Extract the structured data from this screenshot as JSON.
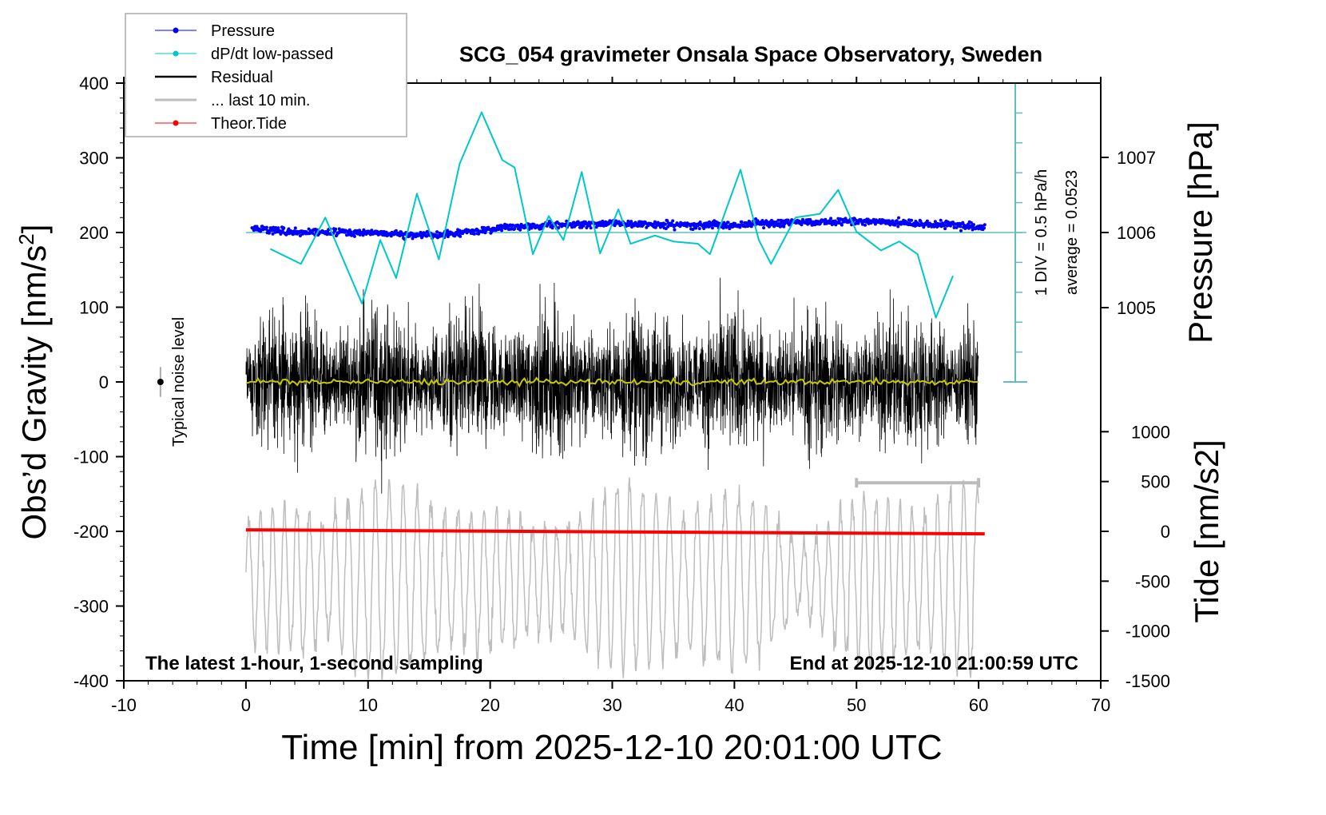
{
  "chart_data": {
    "type": "line",
    "title": "SCG_054 gravimeter Onsala Space Observatory, Sweden",
    "xlabel": "Time [min] from 2025-12-10 20:01:00 UTC",
    "ylabel": "Obs'd Gravity [nm/s2]",
    "ylabel_right_top": "Pressure [hPa]",
    "ylabel_right_bottom": "Tide [nm/s2]",
    "xlim": [
      -10,
      70
    ],
    "ylim": [
      -400,
      400
    ],
    "xticks": [
      "-10",
      "0",
      "10",
      "20",
      "30",
      "40",
      "50",
      "60",
      "70"
    ],
    "yticks": [
      "400",
      "300",
      "200",
      "100",
      "0",
      "-100",
      "-200",
      "-300",
      "-400"
    ],
    "pressure_ticks": [
      "1007",
      "1006",
      "1005"
    ],
    "pressure_tick_values": [
      1007,
      1006,
      1005
    ],
    "tide_ticks": [
      "1000",
      "500",
      "0",
      "-500",
      "-1000",
      "-1500"
    ],
    "tide_tick_values": [
      1000,
      500,
      0,
      -500,
      -1000,
      -1500
    ],
    "legend": {
      "position": "top-left",
      "entries": [
        "Pressure",
        "dP/dt low-passed",
        "Residual",
        "... last 10 min.",
        "Theor.Tide"
      ]
    },
    "colors": {
      "pressure": "#0000ff",
      "dpdt": "#00c8c8",
      "residual": "#000000",
      "last10": "#bebebe",
      "tide": "#ff0000",
      "mean": "#c8c800",
      "scale": "#5fbfbf"
    },
    "annotations": {
      "div": "1 DIV = 0.5 hPa/h",
      "average": "average = 0.0523",
      "noise": "Typical noise level",
      "bottom_left": "The latest 1-hour, 1-second sampling",
      "bottom_right": "End at 2025-12-10 21:00:59 UTC"
    },
    "series": [
      {
        "name": "Pressure",
        "unit": "hPa",
        "x": [
          0.5,
          5,
          10,
          13,
          16,
          19,
          22,
          26,
          30,
          35,
          40,
          45,
          50,
          52,
          55,
          58,
          60.5
        ],
        "values": [
          1006.05,
          1006.0,
          1006.0,
          1005.97,
          1005.97,
          1006.02,
          1006.08,
          1006.1,
          1006.12,
          1006.1,
          1006.1,
          1006.13,
          1006.15,
          1006.15,
          1006.12,
          1006.1,
          1006.07
        ]
      },
      {
        "name": "dP/dt low-passed",
        "unit": "gravity-frame",
        "x": [
          2,
          4.5,
          6.5,
          9.5,
          11,
          12.3,
          14,
          15.8,
          17.5,
          19.3,
          21,
          22,
          23.5,
          24.8,
          26,
          27.5,
          29,
          30.5,
          31.5,
          33.5,
          35,
          37,
          38,
          40.5,
          42,
          43,
          45,
          47,
          48.5,
          50,
          52,
          53.5,
          55,
          56.5,
          57.9
        ],
        "values": [
          178,
          158,
          220,
          105,
          190,
          139,
          252,
          164,
          292,
          361,
          297,
          287,
          171,
          222,
          190,
          281,
          172,
          231,
          185,
          196,
          188,
          185,
          171,
          284,
          190,
          158,
          220,
          225,
          257,
          201,
          176,
          188,
          171,
          86,
          142
        ]
      },
      {
        "name": "Residual",
        "x_range": [
          0,
          60
        ],
        "std": 40,
        "mean": 0
      },
      {
        "name": "... last 10 min.",
        "x_range": [
          0,
          60
        ],
        "offset": -265,
        "amplitude": 90
      },
      {
        "name": "Theor.Tide",
        "unit": "nm/s2",
        "x": [
          0,
          60.5
        ],
        "values": [
          15,
          -25
        ]
      }
    ],
    "noise_level": {
      "x": -7,
      "value": 0,
      "error": 20
    },
    "last10_range": {
      "x": [
        50,
        60
      ],
      "value": -135
    }
  }
}
